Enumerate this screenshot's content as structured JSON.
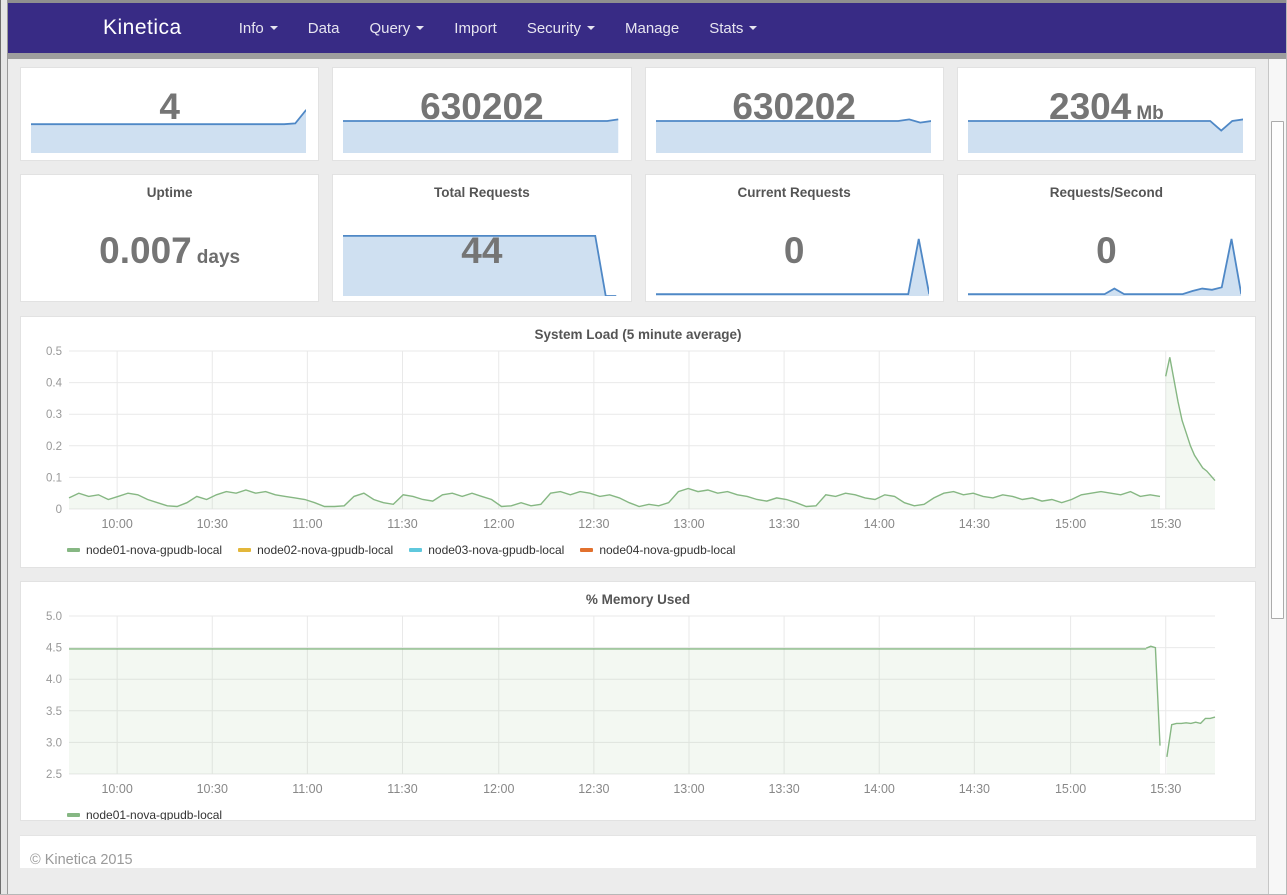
{
  "navbar": {
    "brand": "Kinetica",
    "items": [
      {
        "label": "Info",
        "caret": true
      },
      {
        "label": "Data",
        "caret": false
      },
      {
        "label": "Query",
        "caret": true
      },
      {
        "label": "Import",
        "caret": false
      },
      {
        "label": "Security",
        "caret": true
      },
      {
        "label": "Manage",
        "caret": false
      },
      {
        "label": "Stats",
        "caret": true
      }
    ]
  },
  "colors": {
    "navbar_bg": "#382b85",
    "spark_line": "#4f88c6",
    "spark_fill": "#cfe0f1",
    "chart_line": "#86b783",
    "chart_fill": "rgba(134,183,131,0.10)",
    "grid": "#e9e9e9",
    "tick_text": "#999999"
  },
  "cards_top": [
    {
      "value": "4",
      "unit": "",
      "spark": [
        0.36,
        0.36,
        0.36,
        0.36,
        0.36,
        0.36,
        0.36,
        0.36,
        0.36,
        0.36,
        0.36,
        0.36,
        0.36,
        0.36,
        0.36,
        0.36,
        0.36,
        0.36,
        0.36,
        0.36,
        0.36,
        0.36,
        0.36,
        0.36,
        0.37,
        0.54
      ]
    },
    {
      "value": "630202",
      "unit": "",
      "spark": [
        0.4,
        0.4,
        0.4,
        0.4,
        0.4,
        0.4,
        0.4,
        0.4,
        0.4,
        0.4,
        0.4,
        0.4,
        0.4,
        0.4,
        0.4,
        0.4,
        0.4,
        0.4,
        0.4,
        0.4,
        0.4,
        0.4,
        0.4,
        0.4,
        0.4,
        0.42
      ]
    },
    {
      "value": "630202",
      "unit": "",
      "spark": [
        0.4,
        0.4,
        0.4,
        0.4,
        0.4,
        0.4,
        0.4,
        0.4,
        0.4,
        0.4,
        0.4,
        0.4,
        0.4,
        0.4,
        0.4,
        0.4,
        0.4,
        0.4,
        0.4,
        0.4,
        0.4,
        0.4,
        0.4,
        0.42,
        0.38,
        0.4
      ]
    },
    {
      "value": "2304",
      "unit": "Mb",
      "spark": [
        0.4,
        0.4,
        0.4,
        0.4,
        0.4,
        0.4,
        0.4,
        0.4,
        0.4,
        0.4,
        0.4,
        0.4,
        0.4,
        0.4,
        0.4,
        0.4,
        0.4,
        0.4,
        0.4,
        0.4,
        0.4,
        0.4,
        0.4,
        0.28,
        0.4,
        0.42
      ]
    }
  ],
  "cards_kpi": [
    {
      "title": "Uptime",
      "value": "0.007",
      "unit": "days",
      "spark": null
    },
    {
      "title": "Total Requests",
      "value": "44",
      "unit": "",
      "spark": [
        0.97,
        0.97,
        0.97,
        0.97,
        0.97,
        0.97,
        0.97,
        0.97,
        0.97,
        0.97,
        0.97,
        0.97,
        0.97,
        0.97,
        0.97,
        0.97,
        0.97,
        0.97,
        0.97,
        0.97,
        0.97,
        0.97,
        0.97,
        0.97,
        0.97,
        0.0,
        0.0
      ]
    },
    {
      "title": "Current Requests",
      "value": "0",
      "unit": "",
      "spark": [
        0.03,
        0.03,
        0.03,
        0.03,
        0.03,
        0.03,
        0.03,
        0.03,
        0.03,
        0.03,
        0.03,
        0.03,
        0.03,
        0.03,
        0.03,
        0.03,
        0.03,
        0.03,
        0.03,
        0.03,
        0.03,
        0.03,
        0.03,
        0.03,
        0.03,
        0.92,
        0.03
      ]
    },
    {
      "title": "Requests/Second",
      "value": "0",
      "unit": "",
      "spark": [
        0.03,
        0.03,
        0.03,
        0.03,
        0.03,
        0.03,
        0.03,
        0.03,
        0.03,
        0.03,
        0.03,
        0.03,
        0.03,
        0.03,
        0.03,
        0.12,
        0.03,
        0.03,
        0.03,
        0.03,
        0.03,
        0.03,
        0.03,
        0.08,
        0.12,
        0.1,
        0.14,
        0.92,
        0.03
      ]
    }
  ],
  "chart_data": [
    {
      "type": "area",
      "title": "System Load (5 minute average)",
      "xlabel": "",
      "ylabel": "",
      "ylim": [
        0,
        0.5
      ],
      "grid": true,
      "legend_position": "bottom-left",
      "y_ticks": [
        {
          "v": 0.5,
          "label": "0.5"
        },
        {
          "v": 0.4,
          "label": "0.4"
        },
        {
          "v": 0.3,
          "label": "0.3"
        },
        {
          "v": 0.2,
          "label": "0.2"
        },
        {
          "v": 0.1,
          "label": "0.1"
        },
        {
          "v": 0.0,
          "label": "0"
        }
      ],
      "x_ticks": [
        {
          "label": "10:00",
          "f": 0.042
        },
        {
          "label": "10:30",
          "f": 0.125
        },
        {
          "label": "11:00",
          "f": 0.208
        },
        {
          "label": "11:30",
          "f": 0.291
        },
        {
          "label": "12:00",
          "f": 0.375
        },
        {
          "label": "12:30",
          "f": 0.458
        },
        {
          "label": "13:00",
          "f": 0.541
        },
        {
          "label": "13:30",
          "f": 0.624
        },
        {
          "label": "14:00",
          "f": 0.707
        },
        {
          "label": "14:30",
          "f": 0.79
        },
        {
          "label": "15:00",
          "f": 0.874
        },
        {
          "label": "15:30",
          "f": 0.957
        }
      ],
      "legend": [
        {
          "name": "node01-nova-gpudb-local",
          "color": "#86b783"
        },
        {
          "name": "node02-nova-gpudb-local",
          "color": "#e3b73a"
        },
        {
          "name": "node03-nova-gpudb-local",
          "color": "#5fc8dd"
        },
        {
          "name": "node04-nova-gpudb-local",
          "color": "#e2712e"
        }
      ],
      "series": [
        {
          "name": "node01-nova-gpudb-local",
          "color": "#86b783",
          "fill": "rgba(134,183,131,0.10)",
          "segments": [
            {
              "x0": 0.0,
              "x1": 0.952,
              "values": [
                0.035,
                0.05,
                0.04,
                0.045,
                0.03,
                0.04,
                0.05,
                0.045,
                0.03,
                0.02,
                0.01,
                0.008,
                0.02,
                0.04,
                0.03,
                0.045,
                0.055,
                0.05,
                0.06,
                0.05,
                0.055,
                0.045,
                0.04,
                0.035,
                0.03,
                0.02,
                0.008,
                0.008,
                0.01,
                0.04,
                0.05,
                0.03,
                0.02,
                0.015,
                0.045,
                0.04,
                0.03,
                0.025,
                0.045,
                0.05,
                0.04,
                0.05,
                0.04,
                0.03,
                0.008,
                0.01,
                0.02,
                0.01,
                0.015,
                0.05,
                0.055,
                0.045,
                0.055,
                0.05,
                0.04,
                0.045,
                0.035,
                0.02,
                0.008,
                0.015,
                0.01,
                0.02,
                0.055,
                0.065,
                0.055,
                0.06,
                0.05,
                0.055,
                0.045,
                0.04,
                0.03,
                0.025,
                0.035,
                0.03,
                0.02,
                0.008,
                0.01,
                0.045,
                0.04,
                0.05,
                0.045,
                0.035,
                0.03,
                0.045,
                0.04,
                0.02,
                0.01,
                0.015,
                0.035,
                0.05,
                0.055,
                0.045,
                0.05,
                0.04,
                0.035,
                0.045,
                0.04,
                0.03,
                0.035,
                0.025,
                0.03,
                0.02,
                0.03,
                0.045,
                0.05,
                0.055,
                0.05,
                0.045,
                0.055,
                0.04,
                0.045,
                0.04
              ]
            },
            {
              "x0": 0.957,
              "x1": 1.0,
              "values": [
                0.42,
                0.48,
                0.41,
                0.34,
                0.28,
                0.24,
                0.2,
                0.17,
                0.15,
                0.13,
                0.12,
                0.105,
                0.09
              ]
            }
          ]
        }
      ]
    },
    {
      "type": "area",
      "title": "% Memory Used",
      "xlabel": "",
      "ylabel": "",
      "ylim": [
        2.5,
        5.0
      ],
      "grid": true,
      "legend_position": "bottom-left",
      "y_ticks": [
        {
          "v": 5.0,
          "label": "5.0"
        },
        {
          "v": 4.5,
          "label": "4.5"
        },
        {
          "v": 4.0,
          "label": "4.0"
        },
        {
          "v": 3.5,
          "label": "3.5"
        },
        {
          "v": 3.0,
          "label": "3.0"
        },
        {
          "v": 2.5,
          "label": "2.5"
        }
      ],
      "x_ticks": [
        {
          "label": "10:00",
          "f": 0.042
        },
        {
          "label": "10:30",
          "f": 0.125
        },
        {
          "label": "11:00",
          "f": 0.208
        },
        {
          "label": "11:30",
          "f": 0.291
        },
        {
          "label": "12:00",
          "f": 0.375
        },
        {
          "label": "12:30",
          "f": 0.458
        },
        {
          "label": "13:00",
          "f": 0.541
        },
        {
          "label": "13:30",
          "f": 0.624
        },
        {
          "label": "14:00",
          "f": 0.707
        },
        {
          "label": "14:30",
          "f": 0.79
        },
        {
          "label": "15:00",
          "f": 0.874
        },
        {
          "label": "15:30",
          "f": 0.957
        }
      ],
      "legend": [
        {
          "name": "node01-nova-gpudb-local",
          "color": "#86b783"
        }
      ],
      "series": [
        {
          "name": "node01-nova-gpudb-local",
          "color": "#86b783",
          "fill": "rgba(134,183,131,0.10)",
          "segments": [
            {
              "x0": 0.0,
              "x1": 0.94,
              "flat": 4.48
            },
            {
              "x0": 0.94,
              "x1": 0.952,
              "values": [
                4.49,
                4.52,
                4.5,
                2.95
              ]
            },
            {
              "x0": 0.958,
              "x1": 1.0,
              "values": [
                2.77,
                3.28,
                3.3,
                3.3,
                3.31,
                3.3,
                3.32,
                3.3,
                3.38,
                3.38,
                3.4
              ]
            }
          ]
        }
      ]
    }
  ],
  "footer": {
    "copyright": "© Kinetica 2015"
  }
}
